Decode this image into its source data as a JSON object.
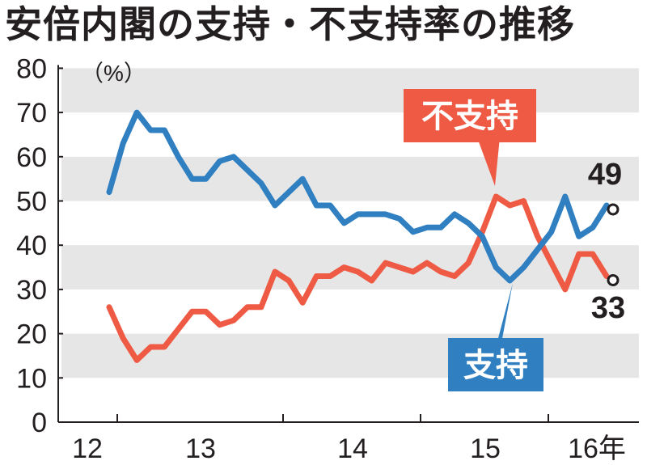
{
  "title": "安倍内閣の支持・不支持率の推移",
  "chart_data": {
    "type": "line",
    "unit": "（%）",
    "ylim": [
      0,
      80
    ],
    "y_ticks": [
      "0",
      "10",
      "20",
      "30",
      "40",
      "50",
      "60",
      "70",
      "80"
    ],
    "x_tick_labels": [
      "12",
      "13",
      "14",
      "15",
      "16年"
    ],
    "grid": "horizontal bands",
    "series": [
      {
        "name": "支持",
        "color": "#2f7fc1",
        "end_label": "49",
        "values": [
          52,
          63,
          70,
          66,
          66,
          60,
          55,
          55,
          59,
          60,
          57,
          54,
          49,
          52,
          55,
          49,
          49,
          45,
          47,
          47,
          47,
          46,
          43,
          44,
          44,
          47,
          45,
          42,
          35,
          32,
          35,
          39,
          43,
          51,
          42,
          44,
          49
        ]
      },
      {
        "name": "不支持",
        "color": "#ee5a43",
        "end_label": "33",
        "values": [
          26,
          19,
          14,
          17,
          17,
          21,
          25,
          25,
          22,
          23,
          26,
          26,
          34,
          32,
          27,
          33,
          33,
          35,
          34,
          32,
          36,
          35,
          34,
          36,
          34,
          33,
          36,
          43,
          51,
          49,
          50,
          42,
          36,
          30,
          38,
          38,
          33
        ]
      }
    ]
  }
}
